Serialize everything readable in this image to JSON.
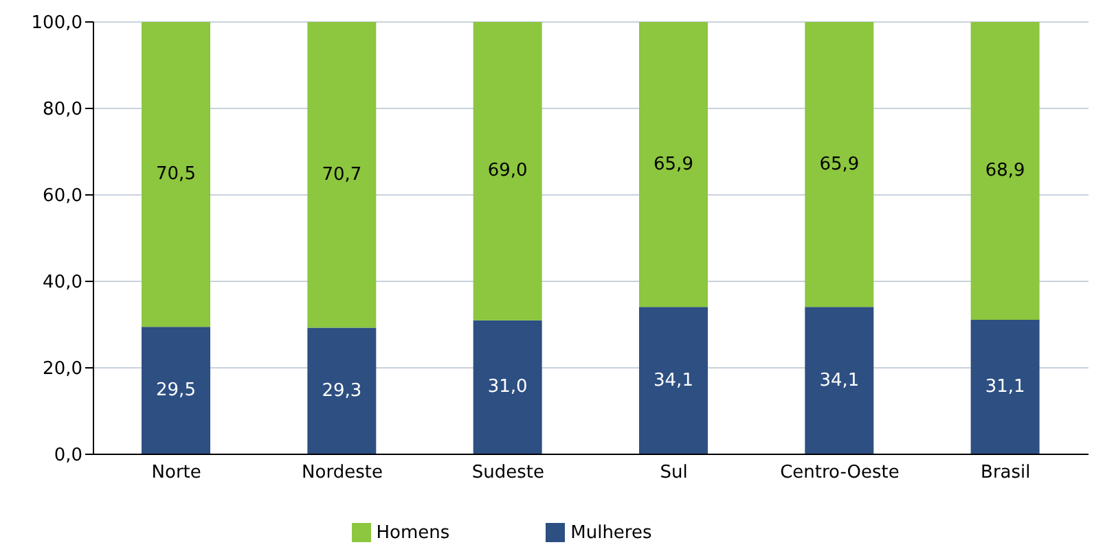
{
  "chart_data": {
    "type": "bar",
    "stacked": true,
    "categories": [
      "Norte",
      "Nordeste",
      "Sudeste",
      "Sul",
      "Centro-Oeste",
      "Brasil"
    ],
    "series": [
      {
        "name": "Mulheres",
        "color": "#2d4f82",
        "values": [
          29.5,
          29.3,
          31.0,
          34.1,
          34.1,
          31.1
        ],
        "value_labels": [
          "29,5",
          "29,3",
          "31,0",
          "34,1",
          "34,1",
          "31,1"
        ]
      },
      {
        "name": "Homens",
        "color": "#8dc63f",
        "values": [
          70.5,
          70.7,
          69.0,
          65.9,
          65.9,
          68.9
        ],
        "value_labels": [
          "70,5",
          "70,7",
          "69,0",
          "65,9",
          "65,9",
          "68,9"
        ]
      }
    ],
    "ylim": [
      0,
      100
    ],
    "yticks": [
      {
        "value": 0,
        "label": "0,0"
      },
      {
        "value": 20,
        "label": "20,0"
      },
      {
        "value": 40,
        "label": "40,0"
      },
      {
        "value": 60,
        "label": "60,0"
      },
      {
        "value": 80,
        "label": "80,0"
      },
      {
        "value": 100,
        "label": "100,0"
      }
    ],
    "grid": "y",
    "legend": "bottom"
  }
}
